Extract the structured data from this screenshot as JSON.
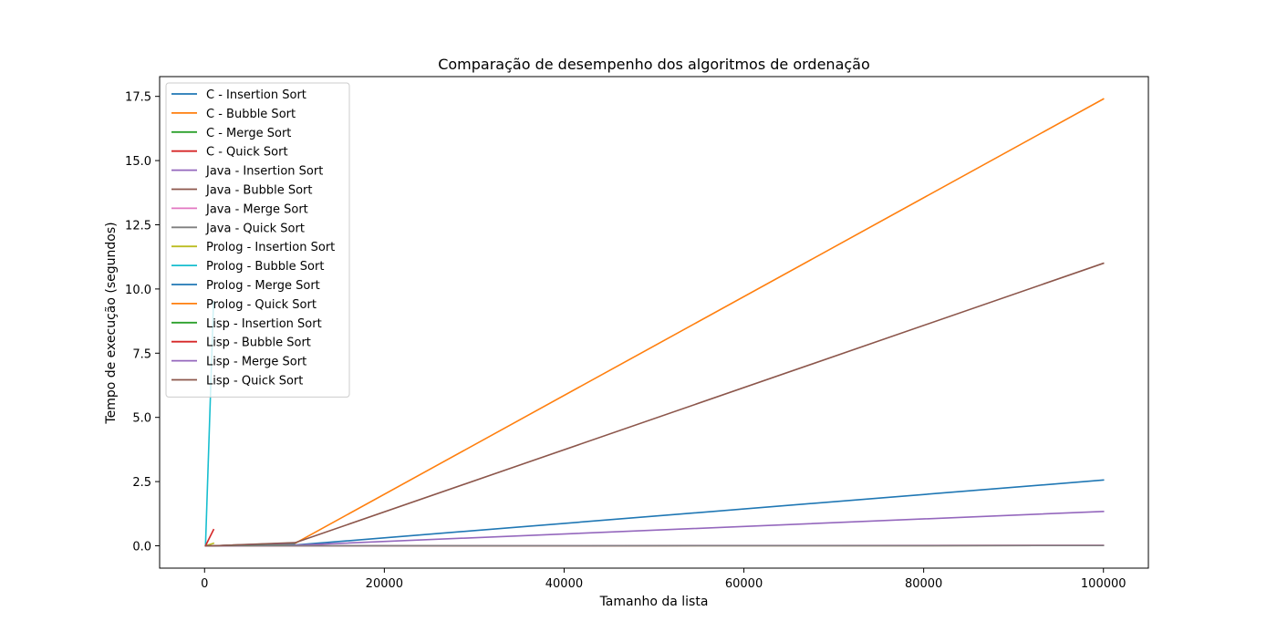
{
  "chart_data": {
    "type": "line",
    "title": "Comparação de desempenho dos algoritmos de ordenação",
    "xlabel": "Tamanho da lista",
    "ylabel": "Tempo de execução (segundos)",
    "xlim": [
      -5000,
      105000
    ],
    "ylim": [
      -0.87,
      18.27
    ],
    "xticks": [
      0,
      20000,
      40000,
      60000,
      80000,
      100000
    ],
    "xtick_labels": [
      "0",
      "20000",
      "40000",
      "60000",
      "80000",
      "100000"
    ],
    "yticks": [
      0.0,
      2.5,
      5.0,
      7.5,
      10.0,
      12.5,
      15.0,
      17.5
    ],
    "ytick_labels": [
      "0.0",
      "2.5",
      "5.0",
      "7.5",
      "10.0",
      "12.5",
      "15.0",
      "17.5"
    ],
    "grid": false,
    "legend_position": "upper-left",
    "series": [
      {
        "name": "C - Insertion Sort",
        "color": "#1f77b4",
        "x": [
          100,
          1000,
          10000,
          100000
        ],
        "y": [
          0.0,
          0.0,
          0.03,
          2.56
        ]
      },
      {
        "name": "C - Bubble Sort",
        "color": "#ff7f0e",
        "x": [
          100,
          1000,
          10000,
          100000
        ],
        "y": [
          0.0,
          0.0,
          0.08,
          17.4
        ]
      },
      {
        "name": "C - Merge Sort",
        "color": "#2ca02c",
        "x": [
          100,
          1000,
          10000,
          100000
        ],
        "y": [
          0.0,
          0.0,
          0.0,
          0.01
        ]
      },
      {
        "name": "C - Quick Sort",
        "color": "#d62728",
        "x": [
          100,
          1000,
          10000,
          100000
        ],
        "y": [
          0.0,
          0.0,
          0.0,
          0.01
        ]
      },
      {
        "name": "Java - Insertion Sort",
        "color": "#9467bd",
        "x": [
          100,
          1000,
          10000,
          100000
        ],
        "y": [
          0.0,
          0.0,
          0.02,
          1.34
        ]
      },
      {
        "name": "Java - Bubble Sort",
        "color": "#8c564b",
        "x": [
          100,
          1000,
          10000,
          100000
        ],
        "y": [
          0.0,
          0.0,
          0.11,
          11.0
        ]
      },
      {
        "name": "Java - Merge Sort",
        "color": "#e377c2",
        "x": [
          100,
          1000,
          10000,
          100000
        ],
        "y": [
          0.0,
          0.0,
          0.0,
          0.02
        ]
      },
      {
        "name": "Java - Quick Sort",
        "color": "#7f7f7f",
        "x": [
          100,
          1000,
          10000,
          100000
        ],
        "y": [
          0.0,
          0.0,
          0.0,
          0.01
        ]
      },
      {
        "name": "Prolog - Insertion Sort",
        "color": "#bcbd22",
        "x": [
          100,
          1000
        ],
        "y": [
          0.0,
          0.1
        ]
      },
      {
        "name": "Prolog - Bubble Sort",
        "color": "#17becf",
        "x": [
          100,
          1000
        ],
        "y": [
          0.01,
          9.5
        ]
      },
      {
        "name": "Prolog - Merge Sort",
        "color": "#1f77b4",
        "x": [
          100,
          1000
        ],
        "y": [
          0.0,
          0.0
        ]
      },
      {
        "name": "Prolog - Quick Sort",
        "color": "#ff7f0e",
        "x": [
          100,
          1000
        ],
        "y": [
          0.0,
          0.0
        ]
      },
      {
        "name": "Lisp - Insertion Sort",
        "color": "#2ca02c",
        "x": [
          100,
          1000,
          10000
        ],
        "y": [
          0.0,
          0.0,
          0.08
        ]
      },
      {
        "name": "Lisp - Bubble Sort",
        "color": "#d62728",
        "x": [
          100,
          1000
        ],
        "y": [
          0.0,
          0.63
        ]
      },
      {
        "name": "Lisp - Merge Sort",
        "color": "#9467bd",
        "x": [
          100,
          1000,
          10000
        ],
        "y": [
          0.0,
          0.0,
          0.1
        ]
      },
      {
        "name": "Lisp - Quick Sort",
        "color": "#8c564b",
        "x": [
          100,
          1000,
          10000
        ],
        "y": [
          0.0,
          0.0,
          0.12
        ]
      }
    ]
  }
}
